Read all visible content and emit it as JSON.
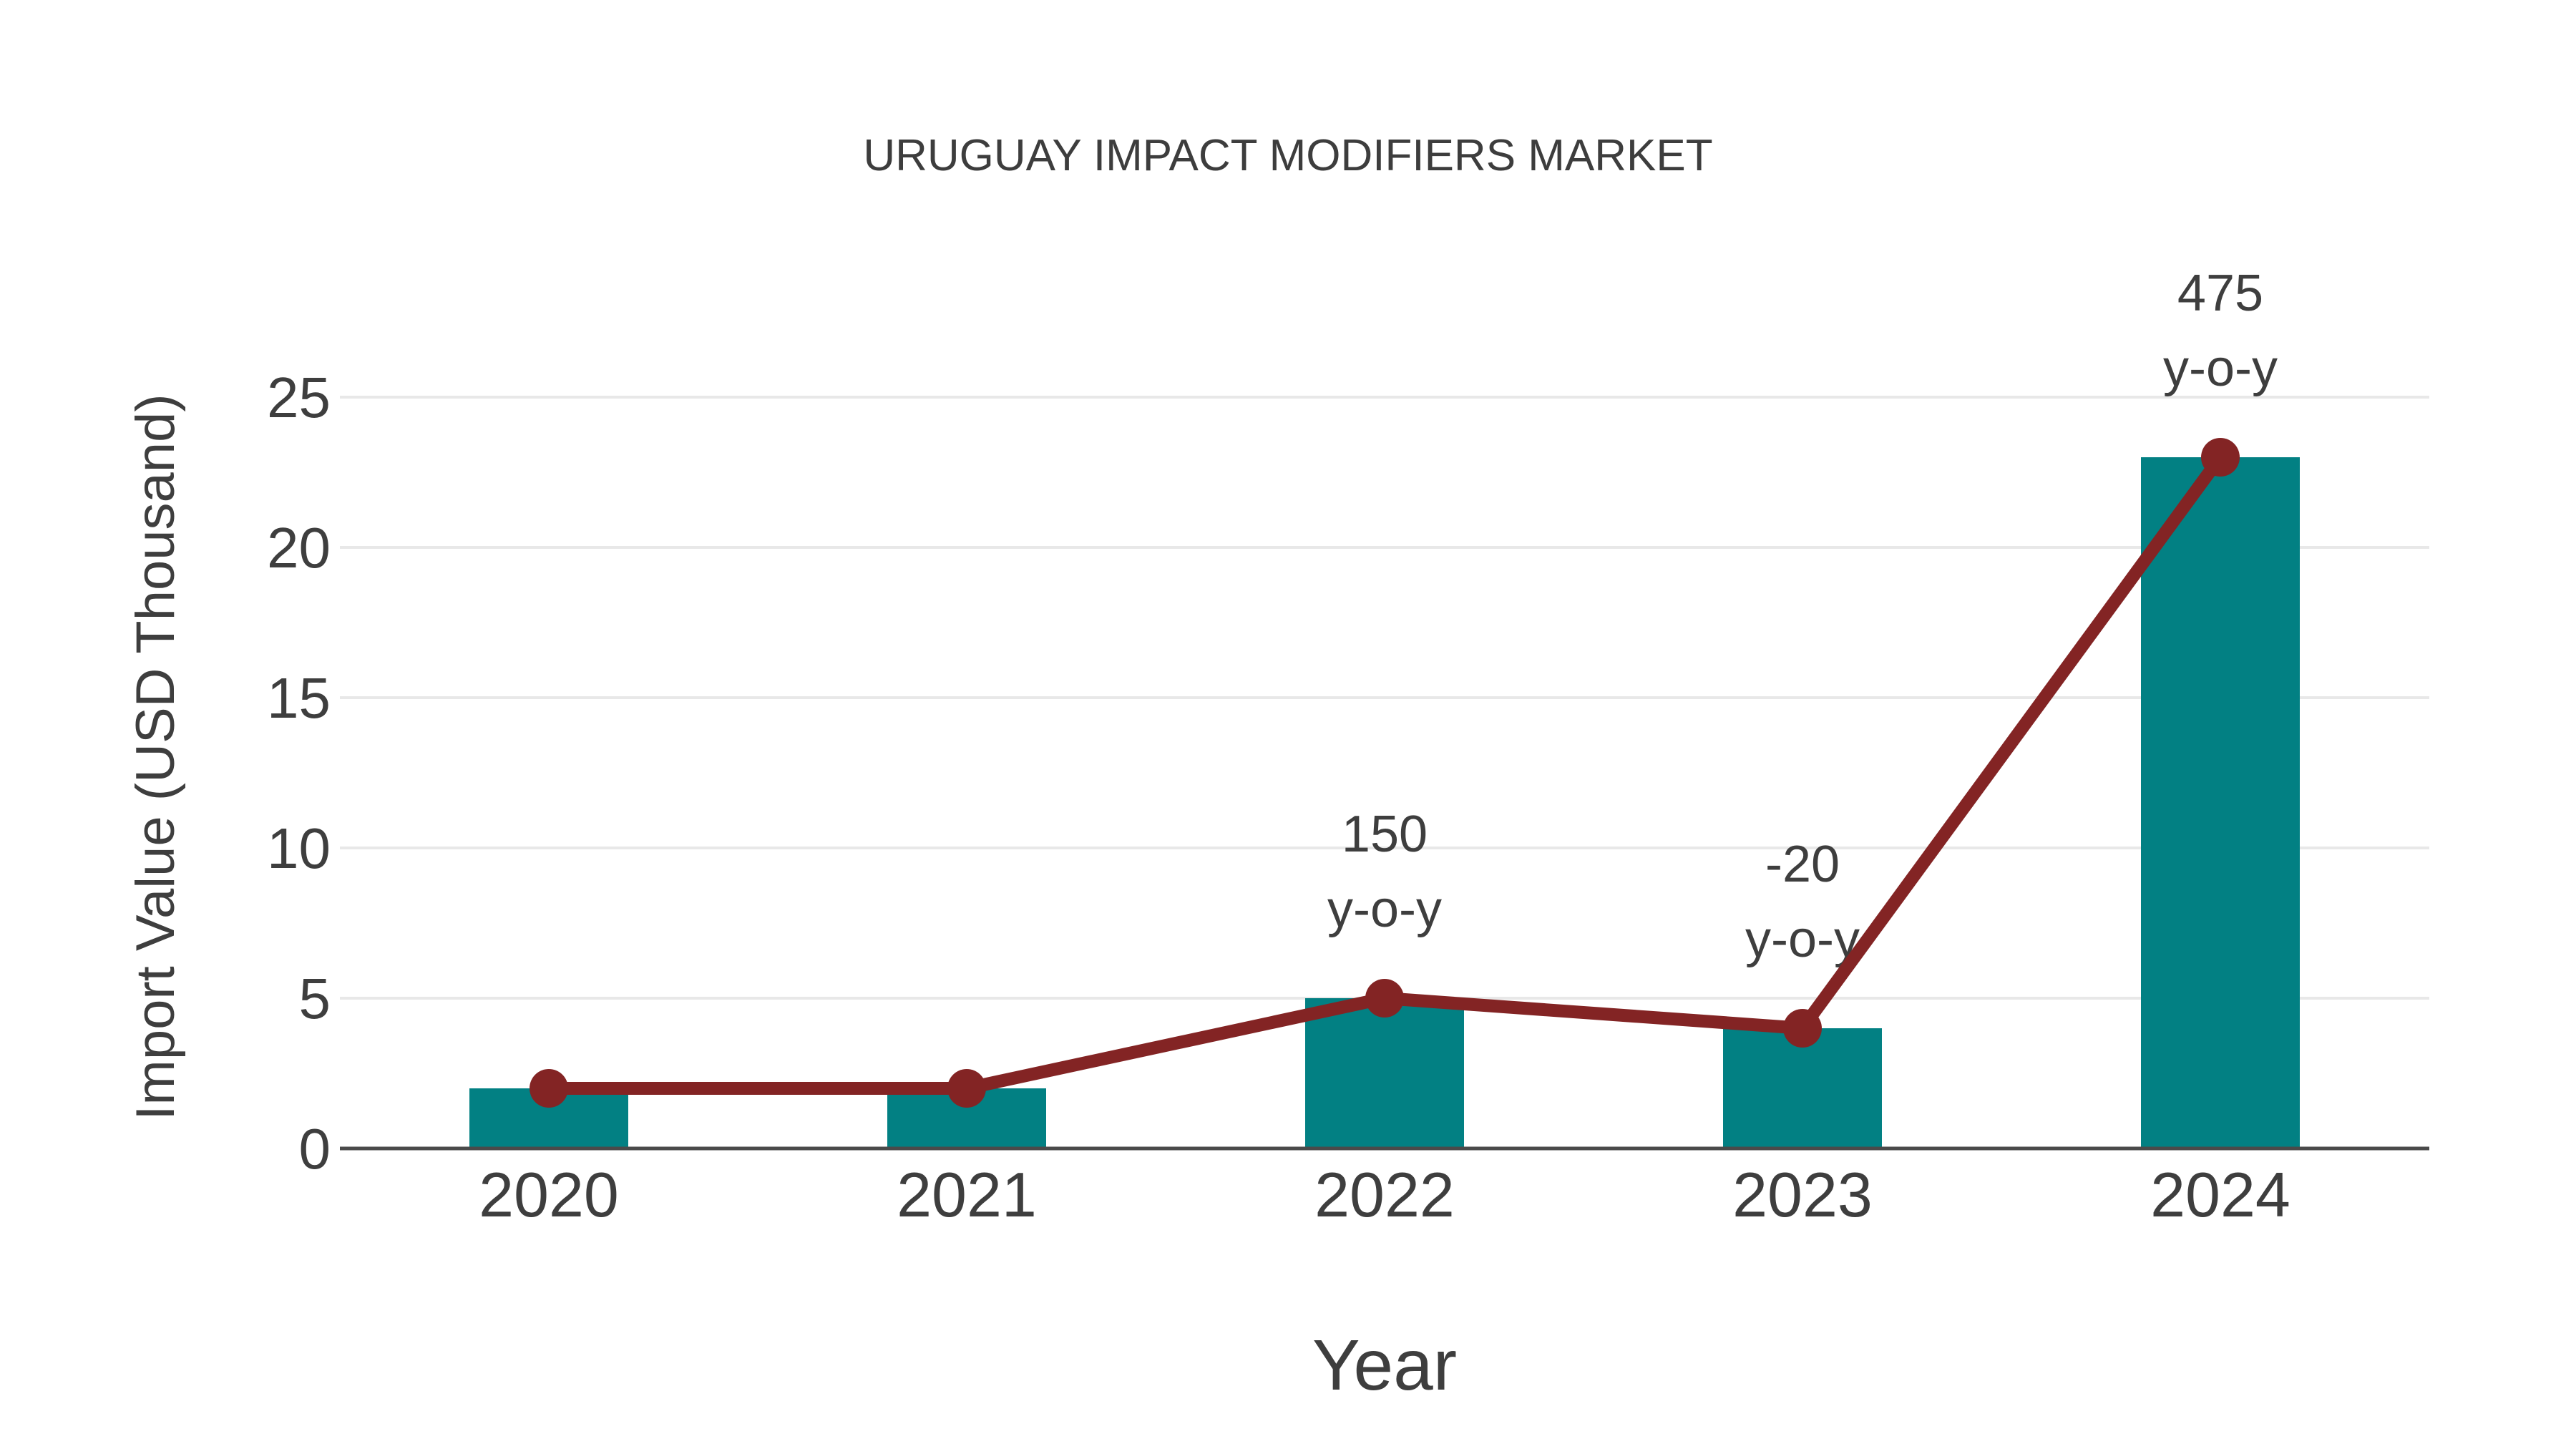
{
  "chart_data": {
    "type": "bar+line",
    "title": "URUGUAY IMPACT MODIFIERS MARKET",
    "xlabel": "Year",
    "ylabel": "Import Value (USD Thousand)",
    "categories": [
      "2020",
      "2021",
      "2022",
      "2023",
      "2024"
    ],
    "series": [
      {
        "name": "Import Value bars",
        "type": "bar",
        "color": "#028083",
        "values": [
          2,
          2,
          5,
          4,
          23
        ]
      },
      {
        "name": "Import Value trend",
        "type": "line",
        "color": "#832424",
        "marker": "circle",
        "values": [
          2,
          2,
          5,
          4,
          23
        ]
      }
    ],
    "annotations": [
      {
        "category": "2022",
        "value": 5,
        "lines": [
          "150",
          "y-o-y"
        ]
      },
      {
        "category": "2023",
        "value": 4,
        "lines": [
          "-20",
          "y-o-y"
        ]
      },
      {
        "category": "2024",
        "value": 23,
        "lines": [
          "475",
          "y-o-y"
        ]
      }
    ],
    "yticks": [
      0,
      5,
      10,
      15,
      20,
      25
    ],
    "ylim": [
      0,
      27.5
    ],
    "grid": true,
    "legend": "none",
    "colors": {
      "bar": "#028083",
      "line": "#832424",
      "grid": "#e8e8e8",
      "axis": "#4a4a4a",
      "text": "#3e3e3e",
      "background": "#ffffff"
    }
  }
}
